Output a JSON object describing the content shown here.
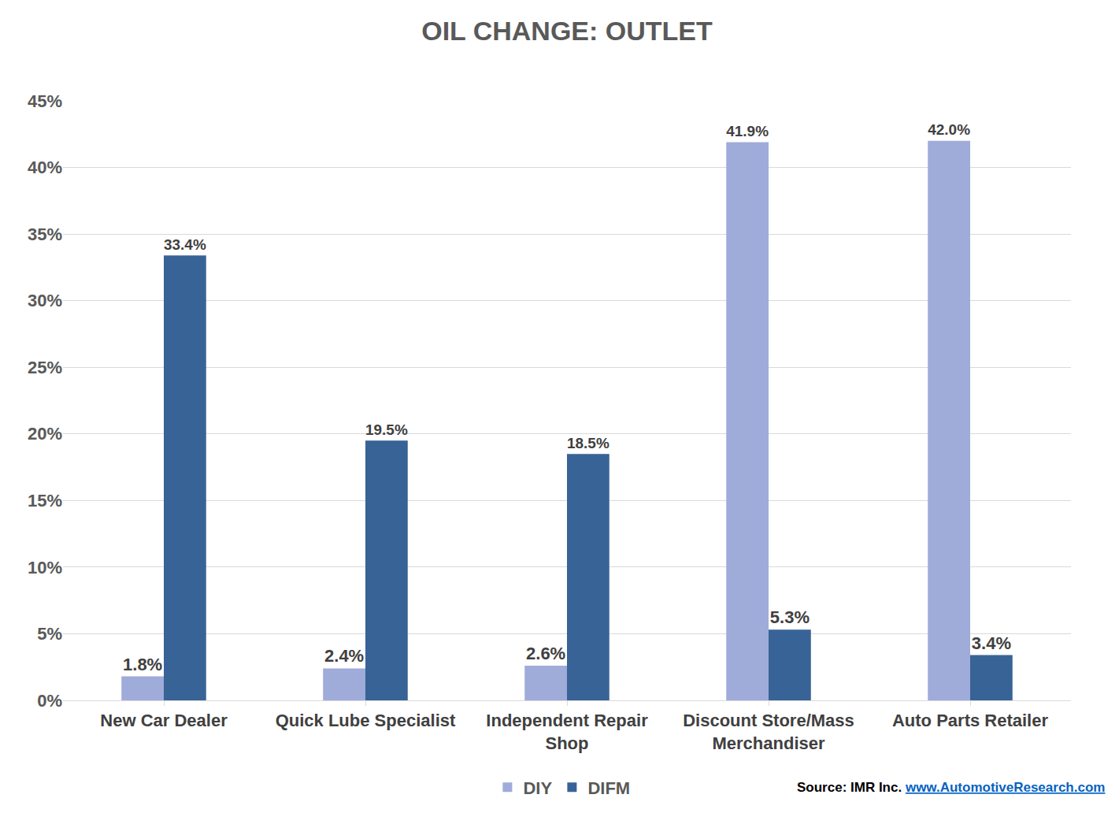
{
  "chart_data": {
    "type": "bar",
    "title": "OIL CHANGE: OUTLET",
    "categories": [
      "New Car Dealer",
      "Quick Lube Specialist",
      "Independent Repair Shop",
      "Discount Store/Mass Merchandiser",
      "Auto Parts Retailer"
    ],
    "series": [
      {
        "name": "DIY",
        "color": "#9fabd9",
        "values": [
          1.8,
          2.4,
          2.6,
          41.9,
          42.0
        ],
        "value_labels": [
          "1.8%",
          "2.4%",
          "2.6%",
          "41.9%",
          "42.0%"
        ]
      },
      {
        "name": "DIFM",
        "color": "#386396",
        "values": [
          33.4,
          19.5,
          18.5,
          5.3,
          3.4
        ],
        "value_labels": [
          "33.4%",
          "19.5%",
          "18.5%",
          "5.3%",
          "3.4%"
        ]
      }
    ],
    "ylim": [
      0,
      45
    ],
    "yticks": [
      {
        "value": 0,
        "label": "0%"
      },
      {
        "value": 5,
        "label": "5%"
      },
      {
        "value": 10,
        "label": "10%"
      },
      {
        "value": 15,
        "label": "15%"
      },
      {
        "value": 20,
        "label": "20%"
      },
      {
        "value": 25,
        "label": "25%"
      },
      {
        "value": 30,
        "label": "30%"
      },
      {
        "value": 35,
        "label": "35%"
      },
      {
        "value": 40,
        "label": "40%"
      },
      {
        "value": 45,
        "label": "45%"
      }
    ],
    "grid": true,
    "legend": "bottom",
    "data_labels": true,
    "annotations": [
      "Source: IMR Inc.",
      "www.AutomotiveResearch.com"
    ]
  }
}
